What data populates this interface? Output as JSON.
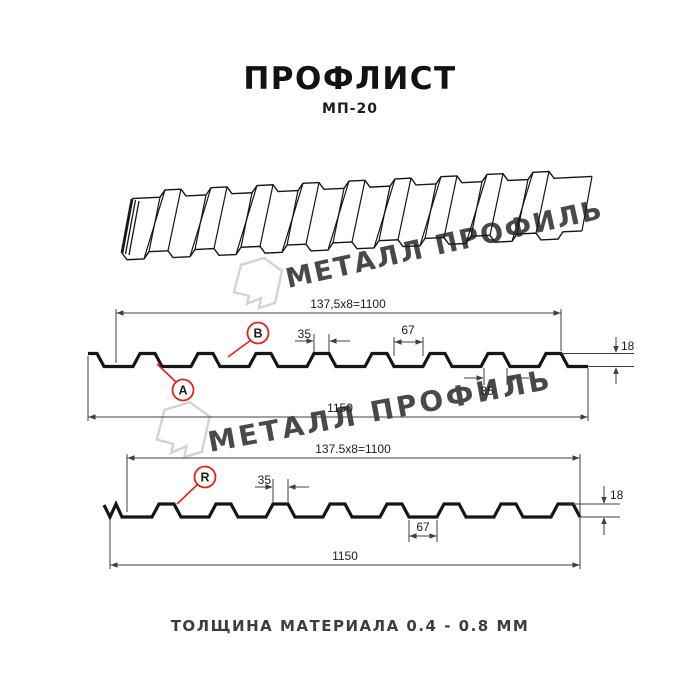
{
  "header": {
    "title": "ПРОФЛИСТ",
    "subtitle": "МП-20"
  },
  "watermark": {
    "text": "МЕТАЛЛ ПРОФИЛЬ",
    "color": "#c9c9c9"
  },
  "section1": {
    "dim_top": "137,5x8=1100",
    "dim_rib_top": "35",
    "dim_valley": "67",
    "dim_rib_base": "35",
    "dim_height": "18",
    "dim_total": "1150",
    "label_a": "A",
    "label_b": "B"
  },
  "section2": {
    "dim_top": "137.5x8=1100",
    "dim_rib_top": "35",
    "dim_valley": "67",
    "dim_height": "18",
    "dim_total": "1150",
    "label_r": "R"
  },
  "footer": {
    "note": "ТОЛЩИНА МАТЕРИАЛА 0.4 - 0.8 ММ"
  },
  "colors": {
    "accent_red": "#e32219",
    "profile_line": "#161616",
    "dim_line": "#3f3f3f",
    "watermark": "#c9c9c9"
  }
}
